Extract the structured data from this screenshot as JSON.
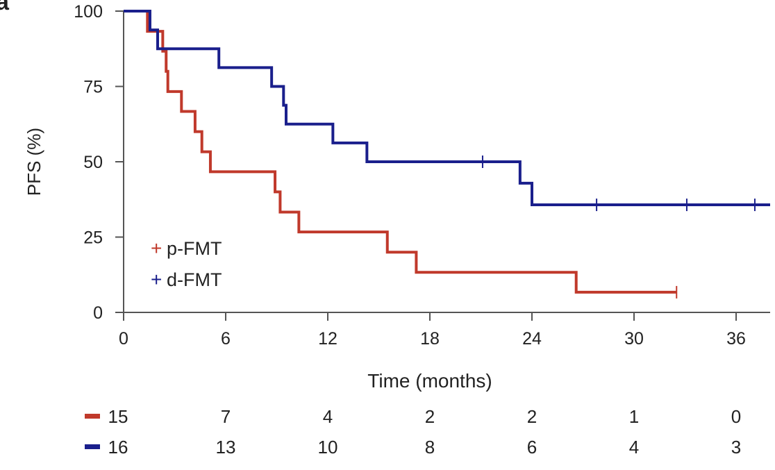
{
  "panel_label": "a",
  "chart_data": {
    "type": "line",
    "subtype": "kaplan-meier step",
    "xlabel": "Time (months)",
    "ylabel": "PFS (%)",
    "xlim": [
      0,
      38
    ],
    "ylim": [
      0,
      100
    ],
    "x_ticks": [
      0,
      6,
      12,
      18,
      24,
      30,
      36
    ],
    "y_ticks": [
      0,
      25,
      50,
      75,
      100
    ],
    "grid": false,
    "legend_position": "bottom-left",
    "series": [
      {
        "name": "p-FMT",
        "color": "#c0392b",
        "steps": [
          [
            0,
            100
          ],
          [
            1.4,
            93.3
          ],
          [
            2.3,
            86.7
          ],
          [
            2.5,
            80
          ],
          [
            2.6,
            73.3
          ],
          [
            3.4,
            66.7
          ],
          [
            4.2,
            60
          ],
          [
            4.6,
            53.3
          ],
          [
            5.1,
            46.7
          ],
          [
            8.9,
            40
          ],
          [
            9.2,
            33.3
          ],
          [
            10.3,
            26.7
          ],
          [
            15.5,
            20
          ],
          [
            17.2,
            13.3
          ],
          [
            26.6,
            6.7
          ]
        ],
        "end": 32.5,
        "censored": [
          32.5
        ],
        "at_risk": [
          15,
          7,
          4,
          2,
          2,
          1,
          0
        ]
      },
      {
        "name": "d-FMT",
        "color": "#1a1f8c",
        "steps": [
          [
            0,
            100
          ],
          [
            1.55,
            93.75
          ],
          [
            2.0,
            87.5
          ],
          [
            5.6,
            81.25
          ],
          [
            8.7,
            75
          ],
          [
            9.4,
            68.75
          ],
          [
            9.55,
            62.5
          ],
          [
            12.3,
            56.25
          ],
          [
            14.3,
            50
          ],
          [
            23.3,
            42.9
          ],
          [
            24.0,
            35.7
          ]
        ],
        "end": 38,
        "censored": [
          21.1,
          27.8,
          33.1,
          37.1
        ],
        "at_risk": [
          16,
          13,
          10,
          8,
          6,
          4,
          3
        ]
      }
    ],
    "at_risk_times": [
      0,
      6,
      12,
      18,
      24,
      30,
      36
    ]
  }
}
